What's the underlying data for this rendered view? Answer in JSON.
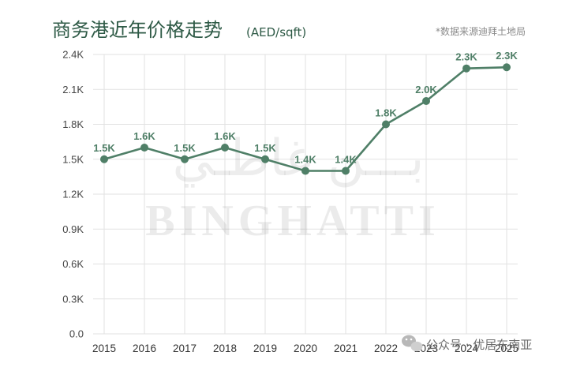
{
  "header": {
    "title": "商务港近年价格走势",
    "unit": "(AED/sqft)",
    "source": "*数据来源迪拜土地局"
  },
  "watermark": {
    "arabic": "بـــن غاطـي",
    "latin": "BINGHATTI"
  },
  "footer": {
    "account": "公众号 · 优居东南亚",
    "icon": "wechat-icon"
  },
  "colors": {
    "line": "#4f7f67",
    "label": "#4f7f67",
    "title": "#2e5a46"
  },
  "chart_data": {
    "type": "line",
    "title": "商务港近年价格走势",
    "ylabel": "",
    "xlabel": "",
    "x": [
      "2015",
      "2016",
      "2017",
      "2018",
      "2019",
      "2020",
      "2021",
      "2022",
      "2023",
      "2024",
      "2025"
    ],
    "series": [
      {
        "values": [
          1500,
          1600,
          1500,
          1600,
          1500,
          1400,
          1400,
          1800,
          2000,
          2280,
          2290
        ],
        "labels": [
          "1.5K",
          "1.6K",
          "1.5K",
          "1.6K",
          "1.5K",
          "1.4K",
          "1.4K",
          "1.8K",
          "2.0K",
          "2.3K",
          "2.3K"
        ]
      }
    ],
    "ylim": [
      0,
      2400
    ],
    "yticks": [
      0,
      300,
      600,
      900,
      1200,
      1500,
      1800,
      2100,
      2400
    ],
    "ytick_labels": [
      "0.0",
      "0.3K",
      "0.6K",
      "0.9K",
      "1.2K",
      "1.5K",
      "1.8K",
      "2.1K",
      "2.4K"
    ],
    "grid": true,
    "legend": "none"
  }
}
